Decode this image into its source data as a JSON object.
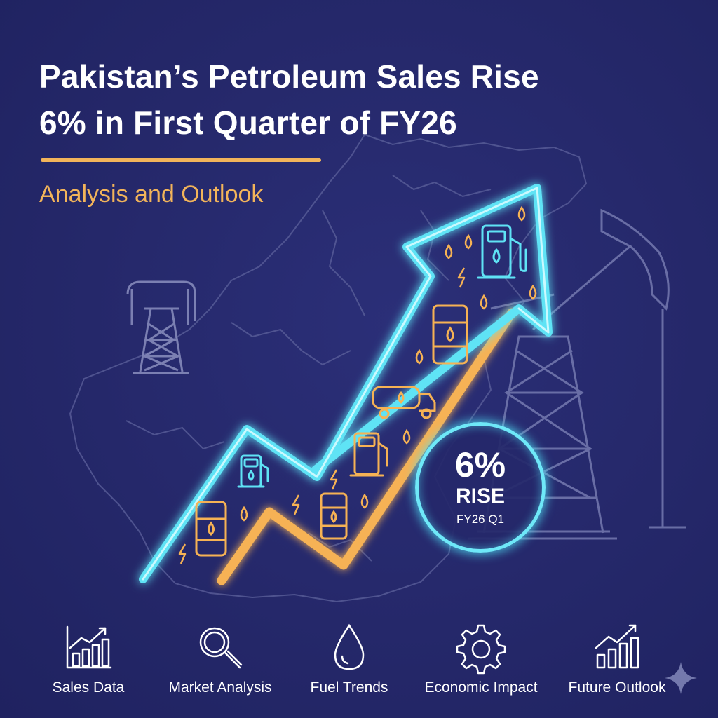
{
  "header": {
    "title_line_1": "Pakistan’s Petroleum Sales Rise",
    "title_line_2": "6% in First Quarter of FY26",
    "subtitle": "Analysis and Outlook"
  },
  "badge": {
    "value": "6%",
    "label": "RISE",
    "period": "FY26 Q1"
  },
  "bottom_nav": {
    "items": [
      {
        "label": "Sales Data",
        "icon": "bar-chart-icon"
      },
      {
        "label": "Market Analysis",
        "icon": "magnifier-icon"
      },
      {
        "label": "Fuel Trends",
        "icon": "droplet-icon"
      },
      {
        "label": "Economic Impact",
        "icon": "gear-icon"
      },
      {
        "label": "Future Outlook",
        "icon": "growth-chart-icon"
      }
    ]
  },
  "colors": {
    "background": "#25286a",
    "accent_gold": "#f2b45a",
    "neon_cyan": "#5fe3f5",
    "neon_orange": "#f6b254",
    "outline_gray": "#6f74a8"
  }
}
